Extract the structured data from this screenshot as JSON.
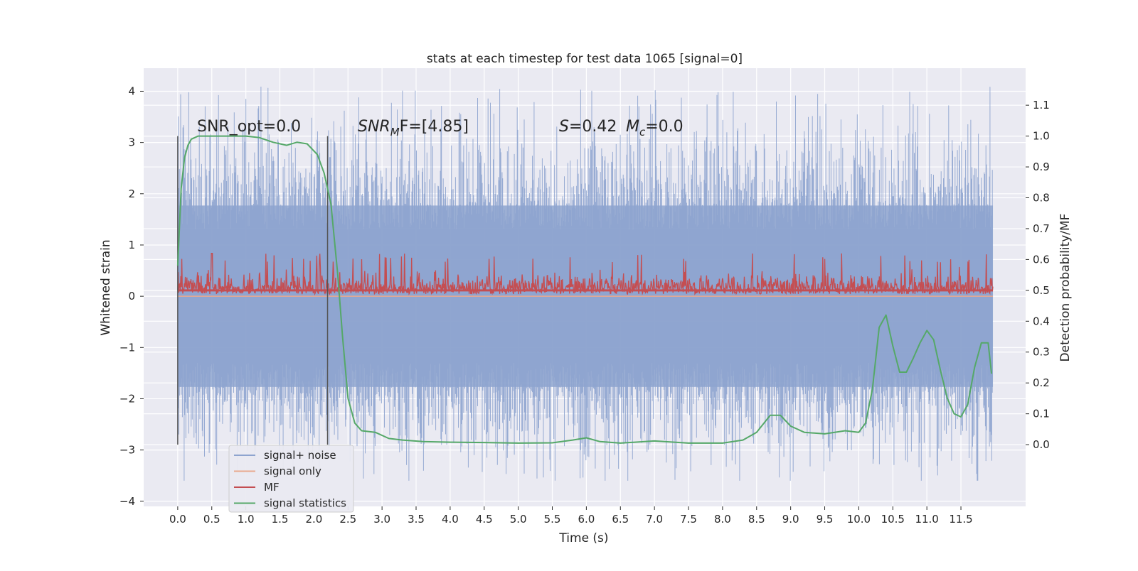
{
  "chart_data": {
    "type": "line",
    "title": "stats at each timestep for test data 1065 [signal=0]",
    "xlabel": "Time (s)",
    "ylabel": "Whitened strain",
    "ylabel_right": "Detection probability/MF",
    "xlim": [
      -0.5,
      12.45
    ],
    "ylim": [
      -4.1,
      4.45
    ],
    "ylim_right": [
      -0.2,
      1.22
    ],
    "x_ticks": [
      "0.0",
      "0.5",
      "1.0",
      "1.5",
      "2.0",
      "2.5",
      "3.0",
      "3.5",
      "4.0",
      "4.5",
      "5.0",
      "5.5",
      "6.0",
      "6.5",
      "7.0",
      "7.5",
      "8.0",
      "8.5",
      "9.0",
      "9.5",
      "10.0",
      "10.5",
      "11.0",
      "11.5"
    ],
    "y_ticks": [
      "4",
      "3",
      "2",
      "1",
      "0",
      "−1",
      "−2",
      "−3",
      "−4"
    ],
    "y_ticks_right": [
      "1.1",
      "1.0",
      "0.9",
      "0.8",
      "0.7",
      "0.6",
      "0.5",
      "0.4",
      "0.3",
      "0.2",
      "0.1",
      "0.0"
    ],
    "grid": true,
    "annotations": {
      "snr_opt": "SNR_opt=0.0",
      "snr_mf_sym": "SNR",
      "snr_mf_sub": "M",
      "snr_mf_tail": "F=[4.85]",
      "s_sym": "S",
      "s_val": "=0.42",
      "mc_sym": "M",
      "mc_sub": "c",
      "mc_val": "=0.0"
    },
    "vertical_markers": [
      0.0,
      2.2
    ],
    "legend": {
      "placement": "lower-left",
      "entries": [
        "signal+ noise",
        "signal only",
        "MF",
        "signal statistics"
      ]
    },
    "colors": {
      "background": "#EAEAF2",
      "grid": "#FFFFFF",
      "noise": "#8EA4CF",
      "signal": "#E9A98E",
      "mf": "#C44E52",
      "stats": "#55A868",
      "marker": "#555555"
    },
    "series": [
      {
        "name": "signal+ noise",
        "style": "dense noise band",
        "x_range": [
          0.0,
          11.97
        ],
        "core_range": [
          -1.77,
          1.77
        ],
        "spike_max": 4.1,
        "spike_min": -3.6
      },
      {
        "name": "signal only",
        "x": [
          0.0,
          11.97
        ],
        "y": [
          0.0,
          0.0
        ]
      },
      {
        "name": "MF",
        "axis": "right",
        "style": "dense trace",
        "x_range": [
          0.0,
          11.97
        ],
        "base": 0.5,
        "range": [
          0.47,
          0.62
        ],
        "peak": [
          0.5,
          0.65
        ]
      },
      {
        "name": "signal statistics",
        "axis": "right",
        "x": [
          0.0,
          0.05,
          0.1,
          0.15,
          0.2,
          0.3,
          0.5,
          0.8,
          1.0,
          1.2,
          1.4,
          1.6,
          1.75,
          1.9,
          2.05,
          2.15,
          2.25,
          2.35,
          2.42,
          2.5,
          2.6,
          2.7,
          2.9,
          3.1,
          3.3,
          3.6,
          4.0,
          4.5,
          5.0,
          5.5,
          5.8,
          6.0,
          6.2,
          6.5,
          7.0,
          7.5,
          8.0,
          8.3,
          8.5,
          8.7,
          8.85,
          9.0,
          9.2,
          9.5,
          9.8,
          10.0,
          10.1,
          10.2,
          10.3,
          10.4,
          10.5,
          10.6,
          10.7,
          10.8,
          10.9,
          11.0,
          11.1,
          11.2,
          11.3,
          11.4,
          11.5,
          11.6,
          11.7,
          11.8,
          11.9,
          11.95
        ],
        "y": [
          0.58,
          0.83,
          0.93,
          0.97,
          0.99,
          1.0,
          1.0,
          1.0,
          1.0,
          0.995,
          0.98,
          0.97,
          0.98,
          0.975,
          0.94,
          0.88,
          0.78,
          0.55,
          0.35,
          0.15,
          0.07,
          0.045,
          0.04,
          0.02,
          0.015,
          0.01,
          0.008,
          0.007,
          0.005,
          0.006,
          0.015,
          0.022,
          0.01,
          0.005,
          0.012,
          0.005,
          0.005,
          0.015,
          0.04,
          0.095,
          0.095,
          0.06,
          0.04,
          0.035,
          0.045,
          0.04,
          0.07,
          0.18,
          0.38,
          0.42,
          0.32,
          0.235,
          0.235,
          0.28,
          0.33,
          0.37,
          0.34,
          0.24,
          0.15,
          0.1,
          0.09,
          0.13,
          0.25,
          0.33,
          0.33,
          0.23
        ]
      }
    ]
  }
}
